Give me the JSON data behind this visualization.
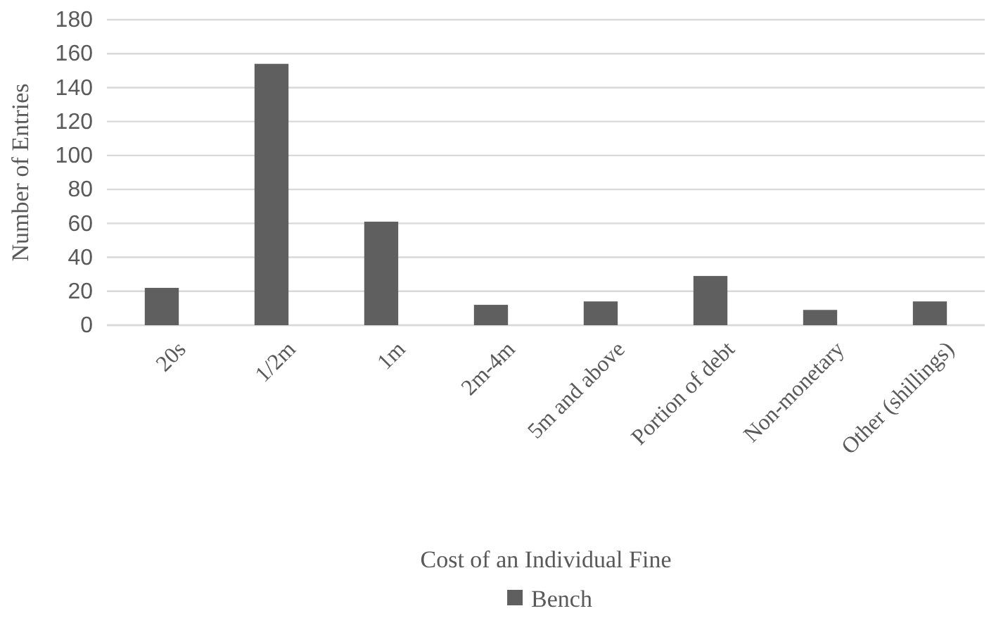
{
  "chart_data": {
    "type": "bar",
    "xlabel": "Cost of an Individual Fine",
    "ylabel": "Number of Entries",
    "categories": [
      "20s",
      "1/2m",
      "1m",
      "2m-4m",
      "5m and above",
      "Portion of debt",
      "Non-monetary",
      "Other (shillings)"
    ],
    "series": [
      {
        "name": "Bench",
        "color": "#5f5f5f",
        "values": [
          22,
          154,
          61,
          12,
          14,
          29,
          9,
          14
        ]
      }
    ],
    "ylim": [
      0,
      180
    ],
    "yticks": [
      0,
      20,
      40,
      60,
      80,
      100,
      120,
      140,
      160,
      180
    ],
    "grid": "y",
    "legend": "bottom"
  }
}
